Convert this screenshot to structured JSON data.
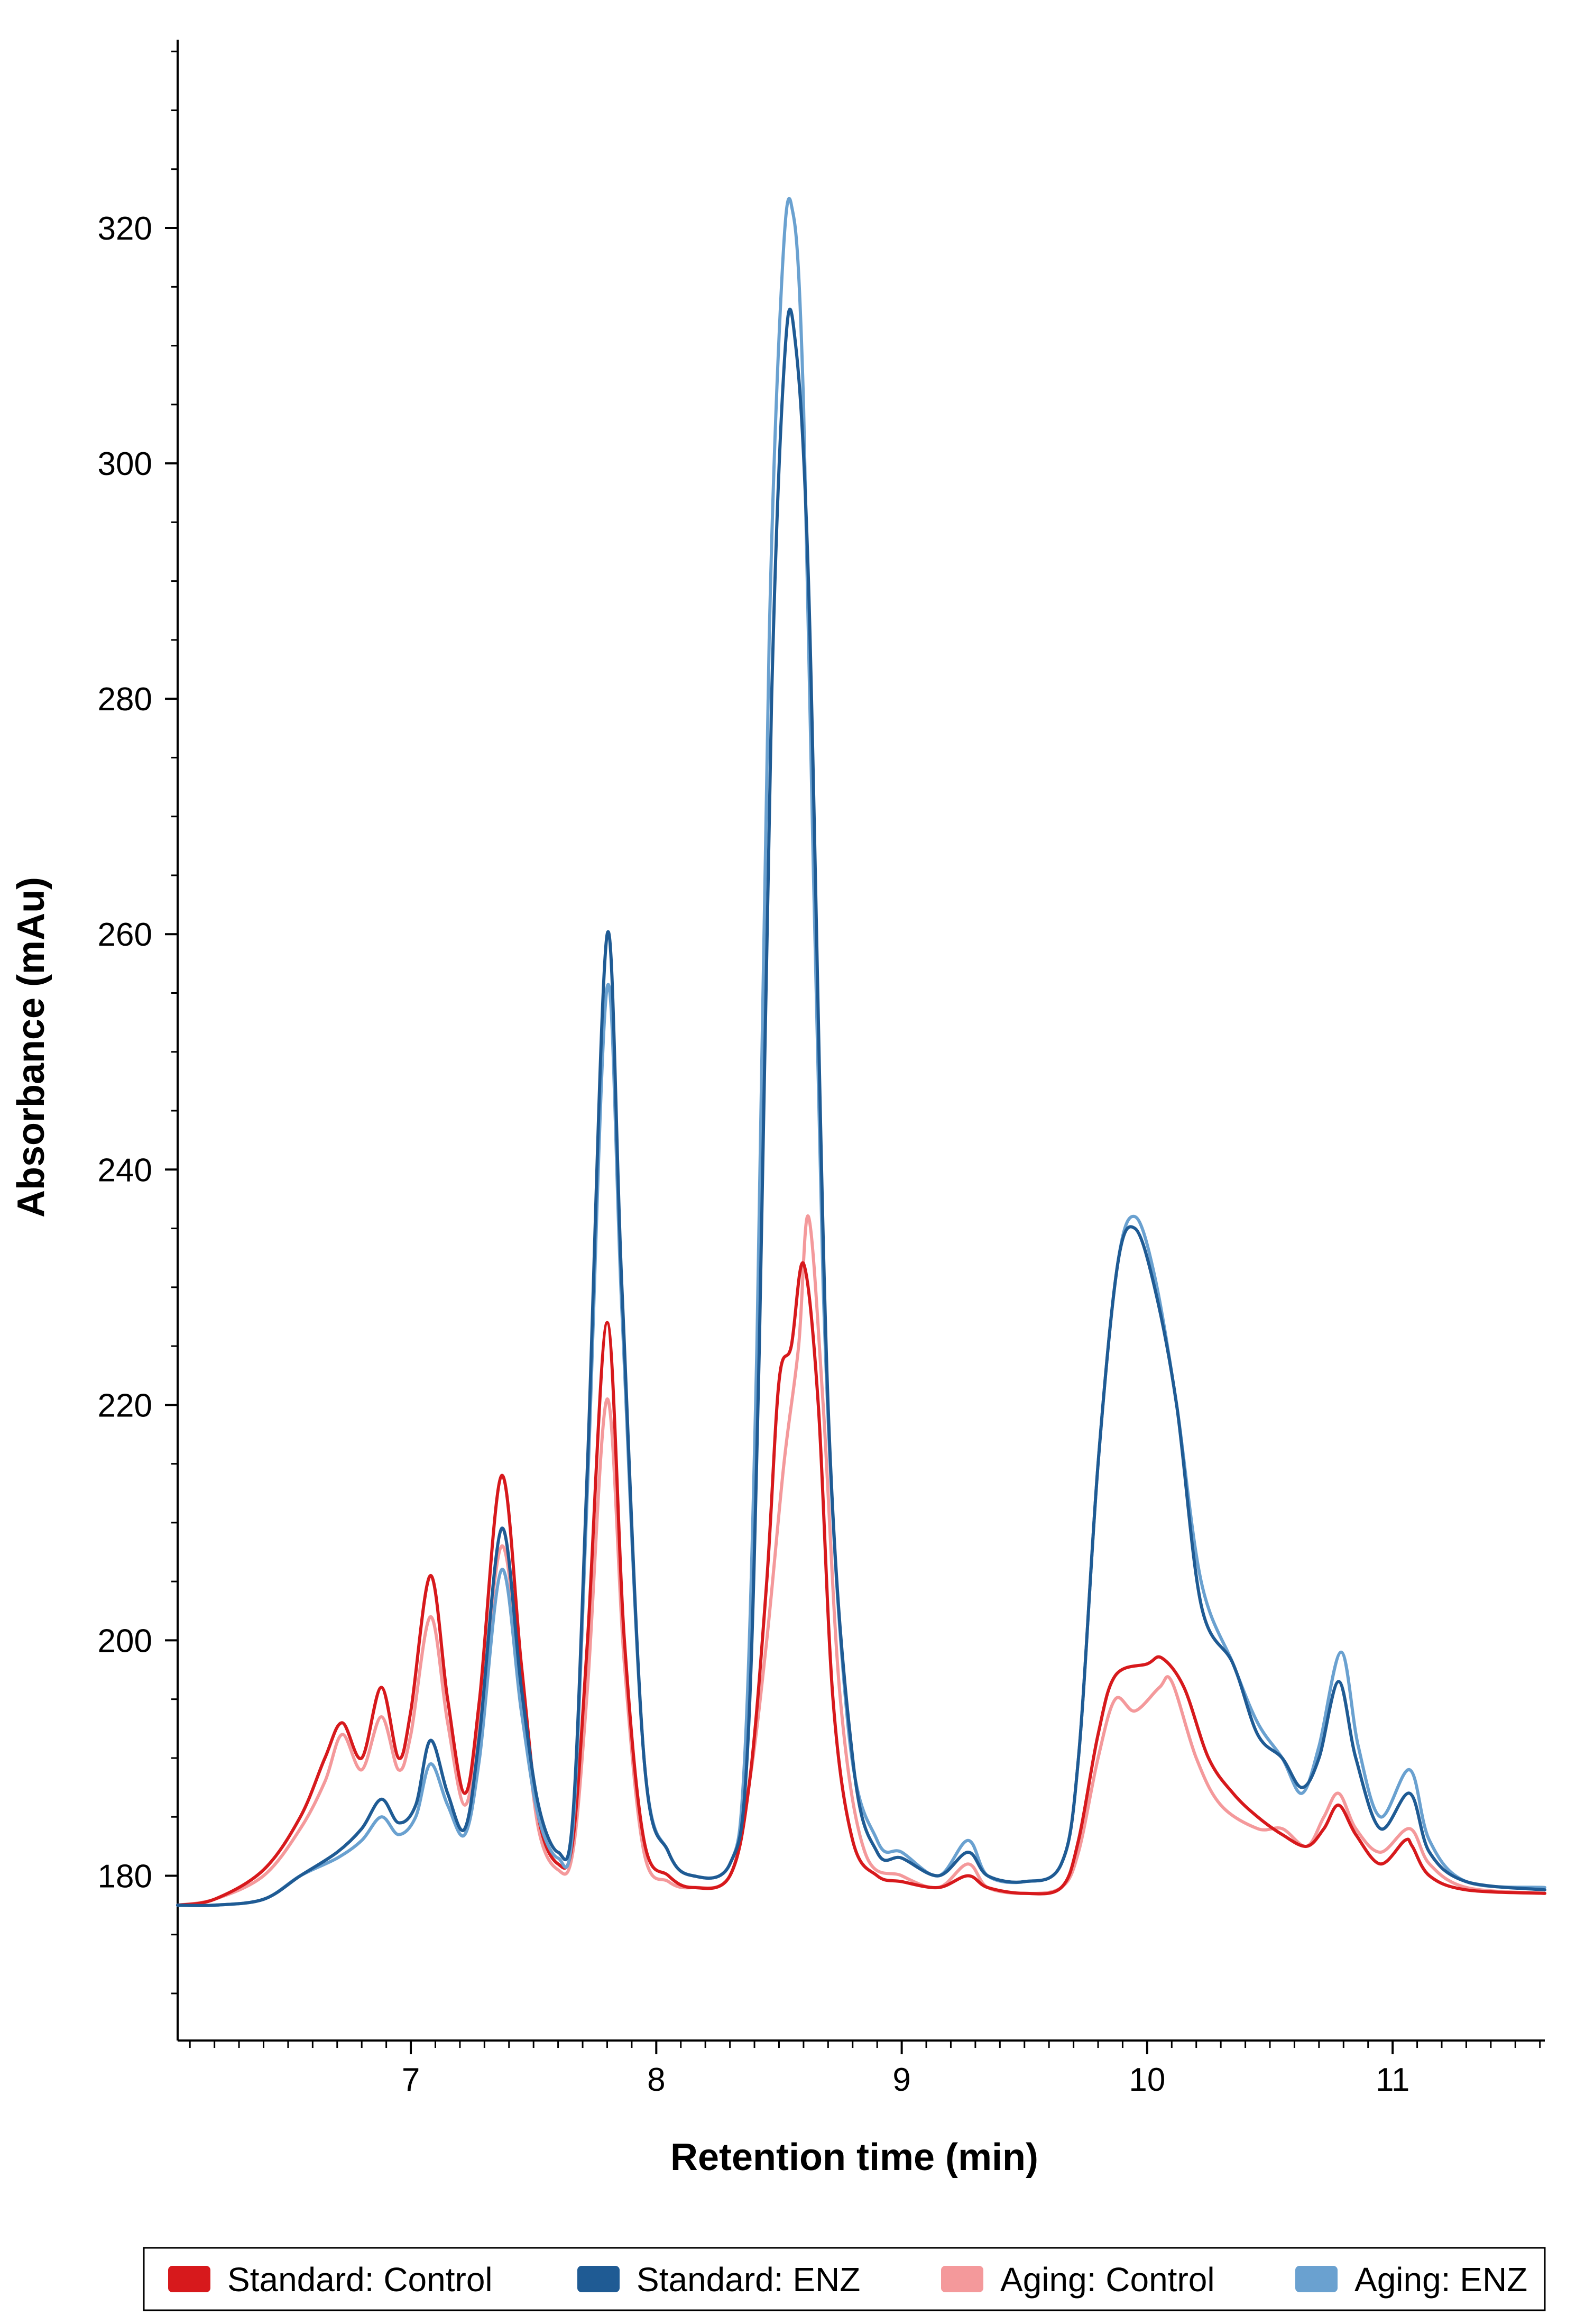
{
  "chart_data": {
    "type": "line",
    "title": "",
    "xlabel": "Retention time (min)",
    "ylabel": "Absorbance (mAu)",
    "xlim": [
      6.05,
      11.62
    ],
    "ylim": [
      166,
      336
    ],
    "x_ticks": [
      7,
      8,
      9,
      10,
      11
    ],
    "y_ticks": [
      180,
      200,
      220,
      240,
      260,
      280,
      300,
      320
    ],
    "x_minor_step": 0.1,
    "y_minor_step": 5,
    "grid": false,
    "legend_position": "bottom",
    "series": [
      {
        "name": "Standard: Control",
        "color": "#d7191c",
        "points": [
          [
            6.05,
            177.5
          ],
          [
            6.2,
            178
          ],
          [
            6.4,
            180.5
          ],
          [
            6.55,
            185
          ],
          [
            6.65,
            190
          ],
          [
            6.72,
            193
          ],
          [
            6.8,
            190
          ],
          [
            6.88,
            196
          ],
          [
            6.95,
            190
          ],
          [
            7.0,
            194
          ],
          [
            7.08,
            205.5
          ],
          [
            7.15,
            195
          ],
          [
            7.22,
            187
          ],
          [
            7.28,
            195
          ],
          [
            7.37,
            214
          ],
          [
            7.45,
            198
          ],
          [
            7.52,
            185
          ],
          [
            7.6,
            181
          ],
          [
            7.66,
            183
          ],
          [
            7.72,
            200
          ],
          [
            7.8,
            227
          ],
          [
            7.87,
            200
          ],
          [
            7.95,
            183
          ],
          [
            8.05,
            180
          ],
          [
            8.15,
            179
          ],
          [
            8.3,
            180
          ],
          [
            8.38,
            188
          ],
          [
            8.45,
            205
          ],
          [
            8.5,
            222
          ],
          [
            8.55,
            225
          ],
          [
            8.6,
            232
          ],
          [
            8.66,
            220
          ],
          [
            8.72,
            195
          ],
          [
            8.8,
            183
          ],
          [
            8.9,
            180
          ],
          [
            9.0,
            179.5
          ],
          [
            9.15,
            179
          ],
          [
            9.27,
            180
          ],
          [
            9.35,
            179
          ],
          [
            9.5,
            178.5
          ],
          [
            9.65,
            179
          ],
          [
            9.72,
            183
          ],
          [
            9.8,
            192
          ],
          [
            9.87,
            197
          ],
          [
            10.0,
            198
          ],
          [
            10.06,
            198.5
          ],
          [
            10.15,
            196
          ],
          [
            10.25,
            190
          ],
          [
            10.35,
            187
          ],
          [
            10.45,
            185
          ],
          [
            10.55,
            183.5
          ],
          [
            10.65,
            182.5
          ],
          [
            10.72,
            184
          ],
          [
            10.78,
            186
          ],
          [
            10.85,
            183.5
          ],
          [
            10.95,
            181
          ],
          [
            11.05,
            183
          ],
          [
            11.08,
            182.5
          ],
          [
            11.15,
            180
          ],
          [
            11.3,
            178.8
          ],
          [
            11.62,
            178.5
          ]
        ]
      },
      {
        "name": "Standard: ENZ",
        "color": "#1f5b94",
        "points": [
          [
            6.05,
            177.5
          ],
          [
            6.2,
            177.5
          ],
          [
            6.4,
            178
          ],
          [
            6.55,
            180
          ],
          [
            6.7,
            182
          ],
          [
            6.8,
            184
          ],
          [
            6.88,
            186.5
          ],
          [
            6.95,
            184.5
          ],
          [
            7.02,
            186
          ],
          [
            7.08,
            191.5
          ],
          [
            7.15,
            187
          ],
          [
            7.22,
            184
          ],
          [
            7.28,
            192
          ],
          [
            7.37,
            209.5
          ],
          [
            7.45,
            196
          ],
          [
            7.52,
            186
          ],
          [
            7.6,
            182
          ],
          [
            7.66,
            185
          ],
          [
            7.72,
            215
          ],
          [
            7.8,
            260
          ],
          [
            7.86,
            230
          ],
          [
            7.95,
            190
          ],
          [
            8.05,
            182
          ],
          [
            8.15,
            180
          ],
          [
            8.3,
            181
          ],
          [
            8.37,
            190
          ],
          [
            8.42,
            225
          ],
          [
            8.47,
            280
          ],
          [
            8.52,
            308
          ],
          [
            8.56,
            311.5
          ],
          [
            8.62,
            290
          ],
          [
            8.7,
            220
          ],
          [
            8.8,
            190
          ],
          [
            8.9,
            182
          ],
          [
            9.0,
            181.5
          ],
          [
            9.15,
            180
          ],
          [
            9.27,
            182
          ],
          [
            9.35,
            180
          ],
          [
            9.5,
            179.5
          ],
          [
            9.65,
            181
          ],
          [
            9.72,
            190
          ],
          [
            9.8,
            215
          ],
          [
            9.88,
            232
          ],
          [
            9.95,
            235
          ],
          [
            10.03,
            230
          ],
          [
            10.12,
            220
          ],
          [
            10.22,
            203
          ],
          [
            10.35,
            198
          ],
          [
            10.45,
            192
          ],
          [
            10.55,
            190
          ],
          [
            10.63,
            187.5
          ],
          [
            10.7,
            190
          ],
          [
            10.78,
            196.5
          ],
          [
            10.85,
            190
          ],
          [
            10.95,
            184
          ],
          [
            11.07,
            187
          ],
          [
            11.15,
            182
          ],
          [
            11.3,
            179.5
          ],
          [
            11.62,
            178.8
          ]
        ]
      },
      {
        "name": "Aging: Control",
        "color": "#f4999b",
        "points": [
          [
            6.05,
            177.5
          ],
          [
            6.2,
            178
          ],
          [
            6.4,
            180
          ],
          [
            6.55,
            184
          ],
          [
            6.65,
            188
          ],
          [
            6.72,
            192
          ],
          [
            6.8,
            189
          ],
          [
            6.88,
            193.5
          ],
          [
            6.95,
            189
          ],
          [
            7.0,
            192
          ],
          [
            7.08,
            202
          ],
          [
            7.15,
            193
          ],
          [
            7.22,
            186
          ],
          [
            7.28,
            193
          ],
          [
            7.37,
            208
          ],
          [
            7.45,
            196
          ],
          [
            7.52,
            184
          ],
          [
            7.6,
            180.5
          ],
          [
            7.66,
            182
          ],
          [
            7.72,
            196
          ],
          [
            7.8,
            220.5
          ],
          [
            7.87,
            198
          ],
          [
            7.95,
            182
          ],
          [
            8.05,
            179.5
          ],
          [
            8.15,
            179
          ],
          [
            8.3,
            180
          ],
          [
            8.38,
            188
          ],
          [
            8.45,
            200
          ],
          [
            8.52,
            215
          ],
          [
            8.58,
            225
          ],
          [
            8.62,
            236
          ],
          [
            8.68,
            220
          ],
          [
            8.75,
            195
          ],
          [
            8.85,
            182
          ],
          [
            9.0,
            180
          ],
          [
            9.15,
            179
          ],
          [
            9.27,
            181
          ],
          [
            9.35,
            179
          ],
          [
            9.5,
            178.5
          ],
          [
            9.65,
            179
          ],
          [
            9.72,
            182
          ],
          [
            9.8,
            190
          ],
          [
            9.87,
            195
          ],
          [
            9.95,
            194
          ],
          [
            10.05,
            196
          ],
          [
            10.1,
            196.5
          ],
          [
            10.2,
            190
          ],
          [
            10.3,
            186
          ],
          [
            10.45,
            184
          ],
          [
            10.55,
            184
          ],
          [
            10.65,
            182.5
          ],
          [
            10.72,
            185
          ],
          [
            10.78,
            187
          ],
          [
            10.85,
            184
          ],
          [
            10.95,
            182
          ],
          [
            11.07,
            184
          ],
          [
            11.15,
            181
          ],
          [
            11.3,
            179
          ],
          [
            11.62,
            178.5
          ]
        ]
      },
      {
        "name": "Aging: ENZ",
        "color": "#6aa1d0",
        "points": [
          [
            6.05,
            177.5
          ],
          [
            6.2,
            177.5
          ],
          [
            6.4,
            178
          ],
          [
            6.55,
            180
          ],
          [
            6.7,
            181.5
          ],
          [
            6.8,
            183
          ],
          [
            6.88,
            185
          ],
          [
            6.95,
            183.5
          ],
          [
            7.02,
            185
          ],
          [
            7.08,
            189.5
          ],
          [
            7.15,
            186
          ],
          [
            7.22,
            183.5
          ],
          [
            7.28,
            190
          ],
          [
            7.37,
            206
          ],
          [
            7.45,
            194
          ],
          [
            7.52,
            185
          ],
          [
            7.6,
            181.5
          ],
          [
            7.66,
            184
          ],
          [
            7.72,
            213
          ],
          [
            7.8,
            255.5
          ],
          [
            7.86,
            228
          ],
          [
            7.95,
            190
          ],
          [
            8.05,
            182
          ],
          [
            8.15,
            180
          ],
          [
            8.3,
            181
          ],
          [
            8.36,
            190
          ],
          [
            8.41,
            225
          ],
          [
            8.46,
            285
          ],
          [
            8.51,
            315
          ],
          [
            8.55,
            322
          ],
          [
            8.6,
            305
          ],
          [
            8.68,
            230
          ],
          [
            8.78,
            193
          ],
          [
            8.9,
            183
          ],
          [
            9.0,
            182
          ],
          [
            9.15,
            180
          ],
          [
            9.27,
            183
          ],
          [
            9.35,
            180
          ],
          [
            9.5,
            179.5
          ],
          [
            9.65,
            181
          ],
          [
            9.72,
            190
          ],
          [
            9.8,
            215
          ],
          [
            9.88,
            232
          ],
          [
            9.95,
            236
          ],
          [
            10.03,
            231
          ],
          [
            10.12,
            220
          ],
          [
            10.22,
            205
          ],
          [
            10.35,
            198
          ],
          [
            10.45,
            193
          ],
          [
            10.55,
            190
          ],
          [
            10.63,
            187
          ],
          [
            10.7,
            191
          ],
          [
            10.79,
            199
          ],
          [
            10.86,
            191
          ],
          [
            10.95,
            185
          ],
          [
            11.07,
            189
          ],
          [
            11.15,
            183
          ],
          [
            11.3,
            179.5
          ],
          [
            11.62,
            179
          ]
        ]
      }
    ]
  }
}
